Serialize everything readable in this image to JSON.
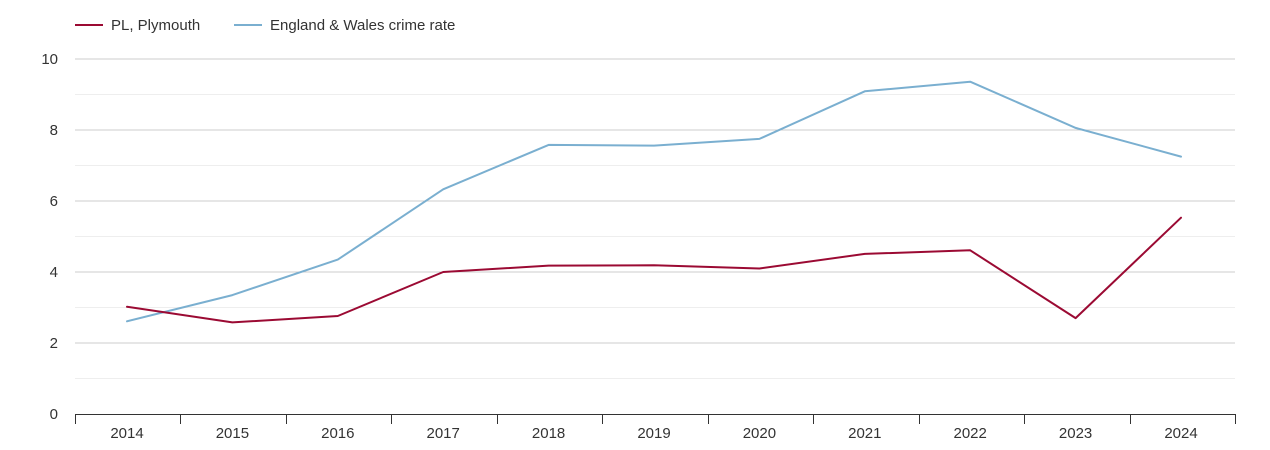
{
  "chart_data": {
    "type": "line",
    "title": "",
    "xlabel": "",
    "ylabel": "",
    "categories": [
      "2014",
      "2015",
      "2016",
      "2017",
      "2018",
      "2019",
      "2020",
      "2021",
      "2022",
      "2023",
      "2024"
    ],
    "ylim": [
      0,
      10
    ],
    "yticks": [
      0,
      2,
      4,
      6,
      8,
      10
    ],
    "ytick_labels": [
      "0",
      "2",
      "4",
      "6",
      "8",
      "10"
    ],
    "grid": true,
    "legend_position": "top-left",
    "series": [
      {
        "name": "PL, Plymouth",
        "color": "#9b0a33",
        "values": [
          3.02,
          2.58,
          2.76,
          4.0,
          4.18,
          4.19,
          4.1,
          4.51,
          4.61,
          2.7,
          5.53
        ]
      },
      {
        "name": "England & Wales crime rate",
        "color": "#7aafd0",
        "values": [
          2.61,
          3.35,
          4.35,
          6.33,
          7.58,
          7.56,
          7.75,
          9.09,
          9.36,
          8.06,
          7.25
        ]
      }
    ]
  }
}
